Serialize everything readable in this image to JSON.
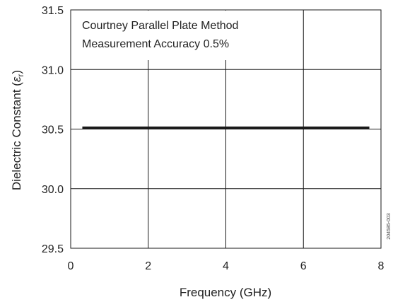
{
  "chart_data": {
    "type": "line",
    "xlabel": "Frequency (GHz)",
    "ylabel_prefix": "Dielectric Constant (",
    "ylabel_epsilon": "ε",
    "ylabel_sub": "r",
    "ylabel_suffix": ")",
    "xlim": [
      0,
      8
    ],
    "ylim": [
      29.5,
      31.5
    ],
    "x_ticks": [
      "0",
      "2",
      "4",
      "6",
      "8"
    ],
    "y_ticks": [
      "29.5",
      "30.0",
      "30.5",
      "31.0",
      "31.5"
    ],
    "grid": true,
    "series": [
      {
        "x": [
          0.3,
          7.7
        ],
        "y": [
          30.51,
          30.51
        ],
        "color": "#1a1a1a"
      }
    ],
    "annotations": [
      "Courtney Parallel Plate Method",
      "Measurement Accuracy 0.5%"
    ],
    "side_code": "204585-003"
  }
}
